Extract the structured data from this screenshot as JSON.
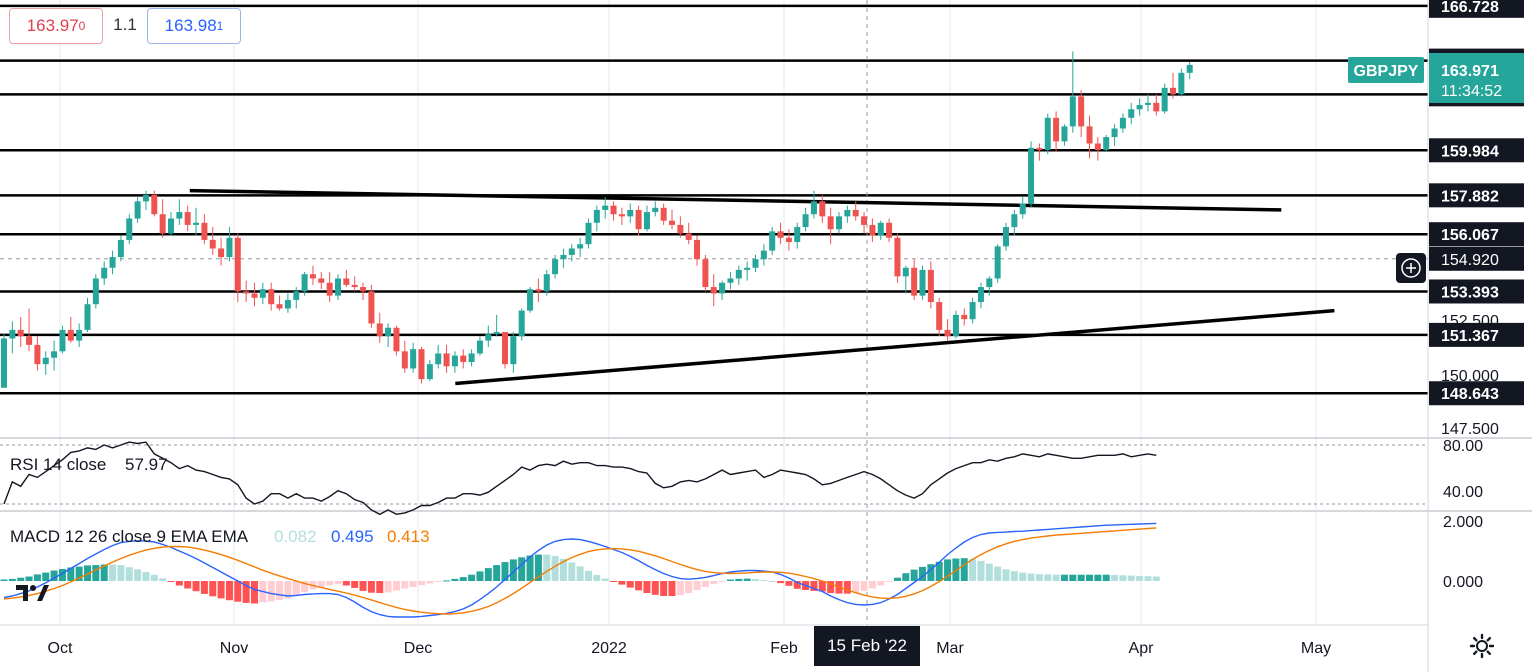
{
  "symbol": "GBPJPY",
  "toolbar": {
    "sell_price_main": "163.97",
    "sell_price_small": "0",
    "spread": "1.1",
    "buy_price_main": "163.98",
    "buy_price_small": "1"
  },
  "price_badge": {
    "value": "163.971",
    "countdown": "11:34:52"
  },
  "crosshair": {
    "date_label": "15 Feb '22",
    "price_label": "154.920"
  },
  "colors": {
    "up": "#26a69a",
    "down": "#ef5350",
    "rsi_line": "#131722",
    "macd_line": "#2962ff",
    "signal_line": "#f57c00",
    "hist_up_strong": "#26a69a",
    "hist_up_weak": "#b2dfdb",
    "hist_down_strong": "#ff5252",
    "hist_down_weak": "#ffcdd2",
    "price_badge": "#26a69a",
    "level_badge": "#131722"
  },
  "rsi": {
    "label": "RSI 14 close",
    "value": "57.97",
    "axis_labels": [
      "80.00",
      "40.00"
    ]
  },
  "macd": {
    "label": "MACD 12 26 close 9 EMA EMA",
    "hist_value": "0.082",
    "macd_value": "0.495",
    "signal_value": "0.413",
    "axis_labels": [
      "2.000",
      "0.000"
    ]
  },
  "chart_data": {
    "type": "candlestick",
    "title": "GBPJPY",
    "x_axis_labels": [
      "Oct",
      "Nov",
      "Dec",
      "2022",
      "Feb",
      "Mar",
      "Apr",
      "May"
    ],
    "ylim": [
      146.6,
      167.0
    ],
    "y_axis_labels": [
      "152.500",
      "150.000",
      "147.500"
    ],
    "horizontal_levels": [
      166.728,
      164.171,
      162.597,
      159.984,
      157.882,
      156.067,
      153.393,
      151.367,
      148.643
    ],
    "trendlines": [
      {
        "from": {
          "x": "2021-10-19",
          "y": 158.1
        },
        "to": {
          "x": "2022-04-22",
          "y": 157.2
        }
      },
      {
        "from": {
          "x": "2021-12-03",
          "y": 149.1
        },
        "to": {
          "x": "2022-05-01",
          "y": 152.5
        }
      }
    ],
    "ohlc": [
      [
        148.9,
        151.4,
        148.9,
        151.2
      ],
      [
        151.2,
        152.0,
        150.5,
        151.6
      ],
      [
        151.6,
        152.2,
        150.8,
        151.3
      ],
      [
        151.3,
        152.6,
        150.6,
        150.9
      ],
      [
        150.9,
        151.3,
        149.7,
        150.0
      ],
      [
        150.0,
        150.6,
        149.5,
        150.3
      ],
      [
        150.3,
        151.1,
        149.7,
        150.6
      ],
      [
        150.6,
        151.8,
        150.5,
        151.6
      ],
      [
        151.6,
        152.2,
        151.0,
        151.1
      ],
      [
        151.1,
        151.9,
        150.8,
        151.6
      ],
      [
        151.6,
        153.1,
        151.5,
        152.8
      ],
      [
        152.8,
        154.2,
        152.6,
        154.0
      ],
      [
        154.0,
        154.8,
        153.7,
        154.5
      ],
      [
        154.5,
        155.3,
        154.2,
        155.0
      ],
      [
        155.0,
        156.0,
        154.8,
        155.8
      ],
      [
        155.8,
        157.0,
        155.6,
        156.8
      ],
      [
        156.8,
        157.8,
        156.6,
        157.6
      ],
      [
        157.6,
        158.1,
        157.2,
        157.9
      ],
      [
        157.9,
        158.1,
        156.9,
        157.0
      ],
      [
        157.0,
        157.7,
        155.9,
        156.1
      ],
      [
        156.1,
        157.1,
        156.0,
        156.8
      ],
      [
        156.8,
        157.7,
        156.5,
        157.1
      ],
      [
        157.1,
        157.4,
        156.2,
        156.5
      ],
      [
        156.5,
        157.3,
        156.0,
        156.6
      ],
      [
        156.6,
        157.0,
        155.6,
        155.8
      ],
      [
        155.8,
        156.4,
        155.1,
        155.4
      ],
      [
        155.4,
        155.9,
        154.6,
        155.0
      ],
      [
        155.0,
        156.4,
        154.8,
        155.9
      ],
      [
        155.9,
        156.1,
        152.9,
        153.4
      ],
      [
        153.4,
        153.9,
        152.9,
        153.3
      ],
      [
        153.3,
        153.8,
        152.7,
        153.1
      ],
      [
        153.1,
        153.8,
        152.8,
        153.5
      ],
      [
        153.5,
        153.8,
        152.5,
        152.8
      ],
      [
        152.8,
        153.2,
        152.5,
        152.6
      ],
      [
        152.6,
        153.3,
        152.4,
        153.0
      ],
      [
        153.0,
        153.6,
        152.6,
        153.4
      ],
      [
        153.4,
        154.3,
        153.2,
        154.2
      ],
      [
        154.2,
        154.6,
        153.7,
        154.0
      ],
      [
        154.0,
        154.3,
        153.5,
        153.8
      ],
      [
        153.8,
        154.3,
        152.9,
        153.2
      ],
      [
        153.2,
        154.2,
        153.0,
        154.0
      ],
      [
        154.0,
        154.4,
        153.6,
        153.7
      ],
      [
        153.7,
        154.1,
        153.4,
        153.6
      ],
      [
        153.6,
        153.8,
        153.0,
        153.4
      ],
      [
        153.4,
        153.7,
        151.7,
        151.9
      ],
      [
        151.9,
        152.4,
        151.0,
        151.3
      ],
      [
        151.3,
        151.9,
        150.8,
        151.7
      ],
      [
        151.7,
        151.8,
        150.4,
        150.6
      ],
      [
        150.6,
        151.1,
        149.6,
        149.8
      ],
      [
        149.8,
        151.0,
        149.6,
        150.7
      ],
      [
        150.7,
        150.8,
        149.1,
        149.3
      ],
      [
        149.3,
        150.2,
        149.2,
        150.0
      ],
      [
        150.0,
        150.9,
        149.8,
        150.5
      ],
      [
        150.5,
        150.9,
        149.6,
        149.9
      ],
      [
        149.9,
        150.6,
        149.6,
        150.4
      ],
      [
        150.4,
        150.7,
        149.8,
        150.1
      ],
      [
        150.1,
        150.7,
        149.9,
        150.5
      ],
      [
        150.5,
        151.3,
        150.4,
        151.1
      ],
      [
        151.1,
        151.8,
        150.8,
        151.4
      ],
      [
        151.4,
        152.3,
        151.3,
        151.5
      ],
      [
        151.5,
        151.5,
        149.8,
        150.0
      ],
      [
        150.0,
        151.5,
        149.6,
        151.3
      ],
      [
        151.3,
        152.6,
        151.1,
        152.5
      ],
      [
        152.5,
        153.6,
        152.4,
        153.5
      ],
      [
        153.5,
        154.0,
        152.9,
        153.4
      ],
      [
        153.4,
        154.4,
        153.2,
        154.2
      ],
      [
        154.2,
        155.1,
        154.0,
        154.9
      ],
      [
        154.9,
        155.4,
        154.5,
        155.1
      ],
      [
        155.1,
        155.6,
        154.8,
        155.4
      ],
      [
        155.4,
        155.9,
        155.0,
        155.6
      ],
      [
        155.6,
        156.8,
        155.4,
        156.6
      ],
      [
        156.6,
        157.4,
        156.2,
        157.2
      ],
      [
        157.2,
        157.8,
        156.8,
        157.4
      ],
      [
        157.4,
        157.6,
        156.7,
        157.0
      ],
      [
        157.0,
        157.3,
        156.5,
        156.9
      ],
      [
        156.9,
        157.5,
        156.6,
        157.2
      ],
      [
        157.2,
        157.4,
        156.0,
        156.3
      ],
      [
        156.3,
        157.4,
        156.2,
        157.1
      ],
      [
        157.1,
        157.6,
        156.9,
        157.3
      ],
      [
        157.3,
        157.5,
        156.5,
        156.7
      ],
      [
        156.7,
        157.2,
        156.3,
        156.5
      ],
      [
        156.5,
        156.9,
        155.9,
        156.1
      ],
      [
        156.1,
        156.6,
        155.6,
        155.8
      ],
      [
        155.8,
        156.0,
        154.6,
        154.9
      ],
      [
        154.9,
        155.1,
        153.4,
        153.6
      ],
      [
        153.6,
        154.2,
        152.7,
        153.3
      ],
      [
        153.3,
        153.9,
        153.0,
        153.8
      ],
      [
        153.8,
        154.3,
        153.5,
        154.0
      ],
      [
        154.0,
        154.6,
        153.7,
        154.4
      ],
      [
        154.4,
        154.8,
        153.9,
        154.5
      ],
      [
        154.5,
        155.1,
        154.3,
        154.9
      ],
      [
        154.9,
        155.6,
        154.6,
        155.3
      ],
      [
        155.3,
        156.4,
        155.1,
        156.2
      ],
      [
        156.2,
        156.6,
        155.6,
        155.9
      ],
      [
        155.9,
        156.3,
        155.3,
        155.7
      ],
      [
        155.7,
        156.6,
        155.4,
        156.4
      ],
      [
        156.4,
        157.3,
        156.2,
        157.0
      ],
      [
        157.0,
        158.1,
        156.8,
        157.6
      ],
      [
        157.6,
        157.9,
        156.6,
        156.9
      ],
      [
        156.9,
        157.3,
        155.6,
        156.3
      ],
      [
        156.3,
        157.1,
        156.1,
        156.9
      ],
      [
        156.9,
        157.4,
        156.6,
        157.2
      ],
      [
        157.2,
        157.6,
        156.7,
        156.9
      ],
      [
        156.9,
        157.1,
        156.1,
        156.5
      ],
      [
        156.5,
        156.8,
        155.7,
        156.0
      ],
      [
        156.0,
        156.7,
        155.8,
        156.6
      ],
      [
        156.6,
        156.8,
        155.7,
        155.9
      ],
      [
        155.9,
        156.1,
        153.8,
        154.1
      ],
      [
        154.1,
        154.6,
        153.3,
        154.5
      ],
      [
        154.5,
        154.9,
        153.0,
        153.2
      ],
      [
        153.2,
        154.6,
        153.0,
        154.4
      ],
      [
        154.4,
        154.8,
        152.6,
        152.9
      ],
      [
        152.9,
        153.1,
        151.3,
        151.6
      ],
      [
        151.6,
        152.1,
        151.1,
        151.3
      ],
      [
        151.3,
        152.5,
        151.2,
        152.3
      ],
      [
        152.3,
        152.6,
        151.8,
        152.1
      ],
      [
        152.1,
        153.1,
        151.9,
        152.9
      ],
      [
        152.9,
        153.8,
        152.6,
        153.6
      ],
      [
        153.6,
        154.1,
        153.2,
        154.0
      ],
      [
        154.0,
        155.6,
        153.8,
        155.5
      ],
      [
        155.5,
        156.6,
        155.3,
        156.4
      ],
      [
        156.4,
        157.2,
        156.0,
        157.0
      ],
      [
        157.0,
        157.8,
        156.8,
        157.5
      ],
      [
        157.5,
        160.4,
        157.3,
        160.1
      ],
      [
        160.1,
        160.3,
        159.5,
        160.0
      ],
      [
        160.0,
        161.7,
        159.8,
        161.5
      ],
      [
        161.5,
        161.8,
        159.9,
        160.4
      ],
      [
        160.4,
        161.2,
        160.2,
        161.1
      ],
      [
        161.1,
        164.6,
        160.8,
        162.5
      ],
      [
        162.5,
        162.8,
        160.6,
        161.1
      ],
      [
        161.1,
        161.6,
        159.6,
        160.3
      ],
      [
        160.3,
        160.6,
        159.5,
        160.0
      ],
      [
        160.0,
        160.7,
        159.9,
        160.6
      ],
      [
        160.6,
        161.2,
        160.2,
        161.0
      ],
      [
        161.0,
        161.7,
        160.8,
        161.5
      ],
      [
        161.5,
        162.2,
        161.2,
        161.9
      ],
      [
        161.9,
        162.4,
        161.6,
        162.1
      ],
      [
        162.1,
        162.6,
        161.8,
        162.2
      ],
      [
        162.2,
        162.6,
        161.6,
        161.8
      ],
      [
        161.8,
        163.1,
        161.7,
        162.9
      ],
      [
        162.9,
        163.6,
        162.4,
        162.6
      ],
      [
        162.6,
        163.8,
        162.5,
        163.6
      ],
      [
        163.6,
        164.1,
        163.3,
        163.971
      ]
    ],
    "rsi_values": [
      40,
      55,
      52,
      60,
      58,
      62,
      66,
      70,
      75,
      76,
      78,
      77,
      80,
      78,
      80,
      82,
      81,
      82,
      74,
      71,
      68,
      64,
      66,
      63,
      62,
      60,
      58,
      57,
      53,
      44,
      40,
      42,
      47,
      47,
      44,
      47,
      44,
      44,
      42,
      45,
      49,
      47,
      43,
      41,
      36,
      33,
      36,
      33,
      34,
      36,
      39,
      39,
      41,
      44,
      44,
      47,
      47,
      46,
      48,
      52,
      56,
      60,
      65,
      63,
      66,
      67,
      66,
      69,
      67,
      68,
      68,
      66,
      66,
      65,
      65,
      64,
      62,
      61,
      54,
      51,
      52,
      55,
      56,
      55,
      57,
      60,
      63,
      60,
      61,
      62,
      63,
      58,
      60,
      63,
      62,
      61,
      60,
      57,
      53,
      54,
      56,
      58,
      60,
      62,
      60,
      57,
      53,
      49,
      46,
      44,
      47,
      53,
      57,
      61,
      64,
      66,
      68,
      68,
      70,
      69,
      71,
      72,
      74,
      73,
      72,
      74,
      73,
      72,
      71,
      71,
      72,
      73,
      73,
      73,
      74,
      72,
      73,
      74,
      73
    ],
    "macd_values": [
      -0.55,
      -0.5,
      -0.42,
      -0.33,
      -0.2,
      -0.06,
      0.1,
      0.25,
      0.42,
      0.58,
      0.75,
      0.9,
      1.05,
      1.18,
      1.28,
      1.32,
      1.34,
      1.33,
      1.3,
      1.22,
      1.12,
      1.0,
      0.88,
      0.75,
      0.6,
      0.45,
      0.3,
      0.15,
      0.0,
      -0.15,
      -0.28,
      -0.35,
      -0.42,
      -0.46,
      -0.5,
      -0.48,
      -0.45,
      -0.43,
      -0.42,
      -0.42,
      -0.45,
      -0.55,
      -0.7,
      -0.88,
      -1.02,
      -1.12,
      -1.18,
      -1.2,
      -1.2,
      -1.2,
      -1.18,
      -1.15,
      -1.12,
      -1.08,
      -1.02,
      -0.93,
      -0.8,
      -0.62,
      -0.42,
      -0.2,
      0.05,
      0.3,
      0.55,
      0.8,
      1.02,
      1.2,
      1.32,
      1.38,
      1.4,
      1.38,
      1.32,
      1.24,
      1.15,
      1.05,
      0.95,
      0.82,
      0.68,
      0.52,
      0.38,
      0.25,
      0.15,
      0.08,
      0.06,
      0.08,
      0.12,
      0.18,
      0.25,
      0.3,
      0.33,
      0.35,
      0.35,
      0.33,
      0.3,
      0.22,
      0.1,
      -0.05,
      -0.15,
      -0.25,
      -0.35,
      -0.5,
      -0.62,
      -0.72,
      -0.78,
      -0.8,
      -0.78,
      -0.72,
      -0.6,
      -0.45,
      -0.25,
      -0.05,
      0.15,
      0.38,
      0.62,
      0.88,
      1.1,
      1.3,
      1.45,
      1.55,
      1.6,
      1.62,
      1.63,
      1.65,
      1.66,
      1.68,
      1.7,
      1.72,
      1.74,
      1.76,
      1.78,
      1.8,
      1.82,
      1.84,
      1.86,
      1.87,
      1.88,
      1.89,
      1.9,
      1.91,
      1.92
    ],
    "signal_values": [
      -0.6,
      -0.57,
      -0.53,
      -0.48,
      -0.42,
      -0.34,
      -0.25,
      -0.15,
      -0.03,
      0.1,
      0.23,
      0.37,
      0.5,
      0.63,
      0.75,
      0.86,
      0.95,
      1.03,
      1.09,
      1.13,
      1.15,
      1.15,
      1.13,
      1.09,
      1.03,
      0.96,
      0.88,
      0.79,
      0.69,
      0.58,
      0.47,
      0.36,
      0.26,
      0.17,
      0.08,
      0.0,
      -0.08,
      -0.15,
      -0.22,
      -0.28,
      -0.34,
      -0.4,
      -0.47,
      -0.55,
      -0.63,
      -0.72,
      -0.8,
      -0.88,
      -0.95,
      -1.0,
      -1.04,
      -1.07,
      -1.09,
      -1.1,
      -1.09,
      -1.06,
      -1.01,
      -0.94,
      -0.85,
      -0.73,
      -0.58,
      -0.42,
      -0.24,
      -0.05,
      0.14,
      0.32,
      0.49,
      0.64,
      0.78,
      0.89,
      0.98,
      1.04,
      1.07,
      1.08,
      1.07,
      1.04,
      0.99,
      0.92,
      0.84,
      0.75,
      0.65,
      0.55,
      0.46,
      0.38,
      0.32,
      0.28,
      0.26,
      0.25,
      0.26,
      0.27,
      0.29,
      0.3,
      0.3,
      0.29,
      0.26,
      0.21,
      0.15,
      0.08,
      0.0,
      -0.1,
      -0.2,
      -0.3,
      -0.39,
      -0.47,
      -0.53,
      -0.57,
      -0.58,
      -0.56,
      -0.51,
      -0.43,
      -0.32,
      -0.18,
      -0.02,
      0.16,
      0.35,
      0.54,
      0.72,
      0.88,
      1.02,
      1.14,
      1.24,
      1.32,
      1.38,
      1.43,
      1.47,
      1.5,
      1.53,
      1.55,
      1.57,
      1.59,
      1.61,
      1.63,
      1.65,
      1.67,
      1.69,
      1.71,
      1.73,
      1.75,
      1.77
    ]
  }
}
